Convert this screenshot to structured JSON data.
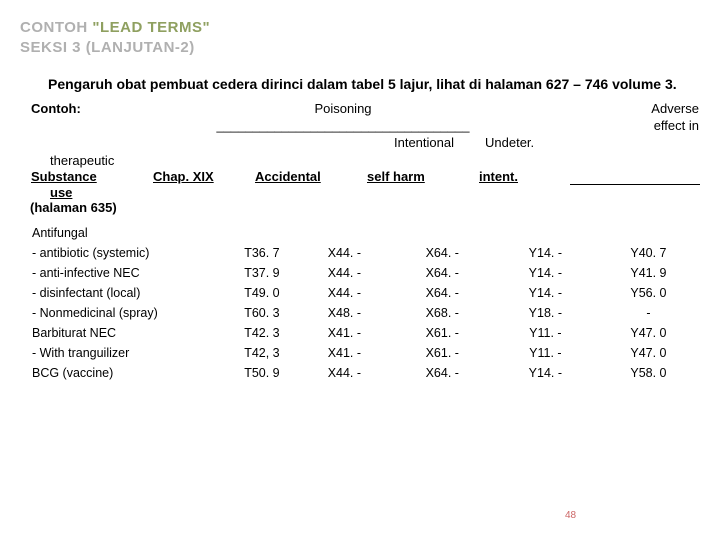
{
  "title": {
    "line1_a": "CONTOH ",
    "line1_b": "\"LEAD TERMS\"",
    "line2": "SEKSI 3 (LANJUTAN-2)"
  },
  "intro": "Pengaruh obat pembuat cedera dirinci dalam tabel 5 lajur, lihat di halaman 627 – 746 volume 3.",
  "contoh_label": "Contoh:",
  "header": {
    "poisoning": "Poisoning",
    "adverse": "Adverse",
    "dashes": "___________________________________",
    "effect_in": "effect in",
    "intentional": "Intentional",
    "undeter": "Undeter.",
    "therapeutic": "therapeutic",
    "substance": "Substance",
    "chap": "Chap. XIX",
    "accidental": "Accidental",
    "selfharm": "self harm",
    "intent": "intent.",
    "use": "use",
    "halaman": "(halaman 635)"
  },
  "rows": [
    {
      "c0": "Antifungal",
      "c1": "",
      "c2": "",
      "c3": "",
      "c4": "",
      "c5": ""
    },
    {
      "c0": "-  antibiotic (systemic)",
      "c1": "T36. 7",
      "c2": "X44. -",
      "c3": "X64. -",
      "c4": "Y14. -",
      "c5": "Y40. 7"
    },
    {
      "c0": "-  anti-infective NEC",
      "c1": "T37. 9",
      "c2": "X44. -",
      "c3": "X64. -",
      "c4": "Y14. -",
      "c5": "Y41. 9"
    },
    {
      "c0": "-  disinfectant (local)",
      "c1": "T49. 0",
      "c2": "X44. -",
      "c3": "X64. -",
      "c4": "Y14. -",
      "c5": "Y56. 0"
    },
    {
      "c0": "-  Nonmedicinal (spray)",
      "c1": "T60. 3",
      "c2": "X48. -",
      "c3": "X68. -",
      "c4": "Y18. -",
      "c5": "-"
    },
    {
      "c0": "Barbiturat NEC",
      "c1": "T42. 3",
      "c2": "X41. -",
      "c3": "X61. -",
      "c4": "Y11. -",
      "c5": "Y47. 0"
    },
    {
      "c0": "-  With tranguilizer",
      "c1": "T42, 3",
      "c2": "X41. -",
      "c3": "X61. -",
      "c4": "Y11. -",
      "c5": "Y47. 0"
    },
    {
      "c0": "BCG (vaccine)",
      "c1": "T50. 9",
      "c2": "X44. -",
      "c3": "X64. -",
      "c4": "Y14. -",
      "c5": "Y58. 0"
    }
  ],
  "pagenum": "48"
}
